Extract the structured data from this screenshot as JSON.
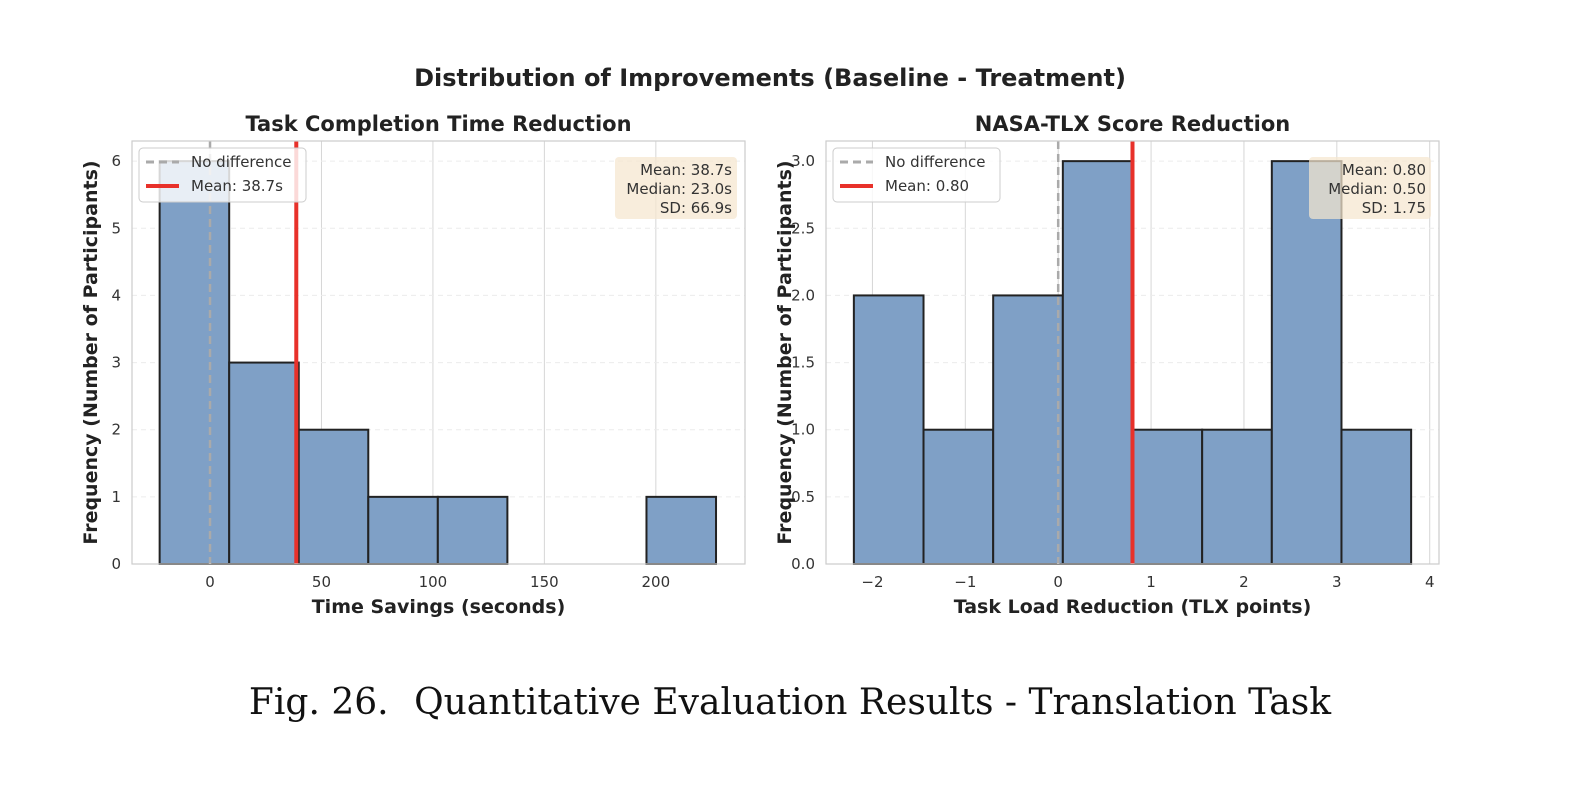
{
  "suptitle": "Distribution of Improvements (Baseline - Treatment)",
  "caption": {
    "label": "Fig. 26.",
    "text": "Quantitative Evaluation Results - Translation Task"
  },
  "colors": {
    "bar_fill": "#7fa0c6",
    "bar_edge": "#222222",
    "mean_line": "#e8312a",
    "zero_line": "#aaaaaa",
    "stats_box": "#f5e6cf"
  },
  "chart_data": [
    {
      "type": "bar",
      "title": "Task Completion Time Reduction",
      "xlabel": "Time Savings (seconds)",
      "ylabel": "Frequency (Number of Participants)",
      "xlim": [
        -35,
        240
      ],
      "ylim": [
        0,
        6.3
      ],
      "xticks": [
        0,
        50,
        100,
        150,
        200
      ],
      "yticks": [
        0,
        1,
        2,
        3,
        4,
        5,
        6
      ],
      "ytick_labels": [
        "0",
        "1",
        "2",
        "3",
        "4",
        "5",
        "6"
      ],
      "bin_edges": [
        -22.6,
        8.6,
        39.8,
        71.0,
        102.2,
        133.4,
        164.6,
        195.8,
        227.0
      ],
      "counts": [
        6,
        3,
        2,
        1,
        1,
        0,
        0,
        1
      ],
      "zero_line": 0,
      "mean": 38.7,
      "legend": [
        {
          "label": "No difference",
          "style": "dashed-gray"
        },
        {
          "label": "Mean: 38.7s",
          "style": "solid-red"
        }
      ],
      "stats": [
        "Mean: 38.7s",
        "Median: 23.0s",
        "SD: 66.9s"
      ]
    },
    {
      "type": "bar",
      "title": "NASA-TLX Score Reduction",
      "xlabel": "Task Load Reduction (TLX points)",
      "ylabel": "Frequency (Number of Participants)",
      "xlim": [
        -2.5,
        4.1
      ],
      "ylim": [
        0,
        3.15
      ],
      "xticks": [
        -2,
        -1,
        0,
        1,
        2,
        3,
        4
      ],
      "xtick_labels": [
        "−2",
        "−1",
        "0",
        "1",
        "2",
        "3",
        "4"
      ],
      "yticks": [
        0,
        0.5,
        1,
        1.5,
        2,
        2.5,
        3
      ],
      "ytick_labels": [
        "0.0",
        "0.5",
        "1.0",
        "1.5",
        "2.0",
        "2.5",
        "3.0"
      ],
      "bin_edges": [
        -2.2,
        -1.45,
        -0.7,
        0.05,
        0.8,
        1.55,
        2.3,
        3.05,
        3.8
      ],
      "counts": [
        2,
        1,
        2,
        3,
        1,
        1,
        3,
        1
      ],
      "zero_line": 0,
      "mean": 0.8,
      "legend": [
        {
          "label": "No difference",
          "style": "dashed-gray"
        },
        {
          "label": "Mean: 0.80",
          "style": "solid-red"
        }
      ],
      "stats": [
        "Mean: 0.80",
        "Median: 0.50",
        "SD: 1.75"
      ]
    }
  ]
}
